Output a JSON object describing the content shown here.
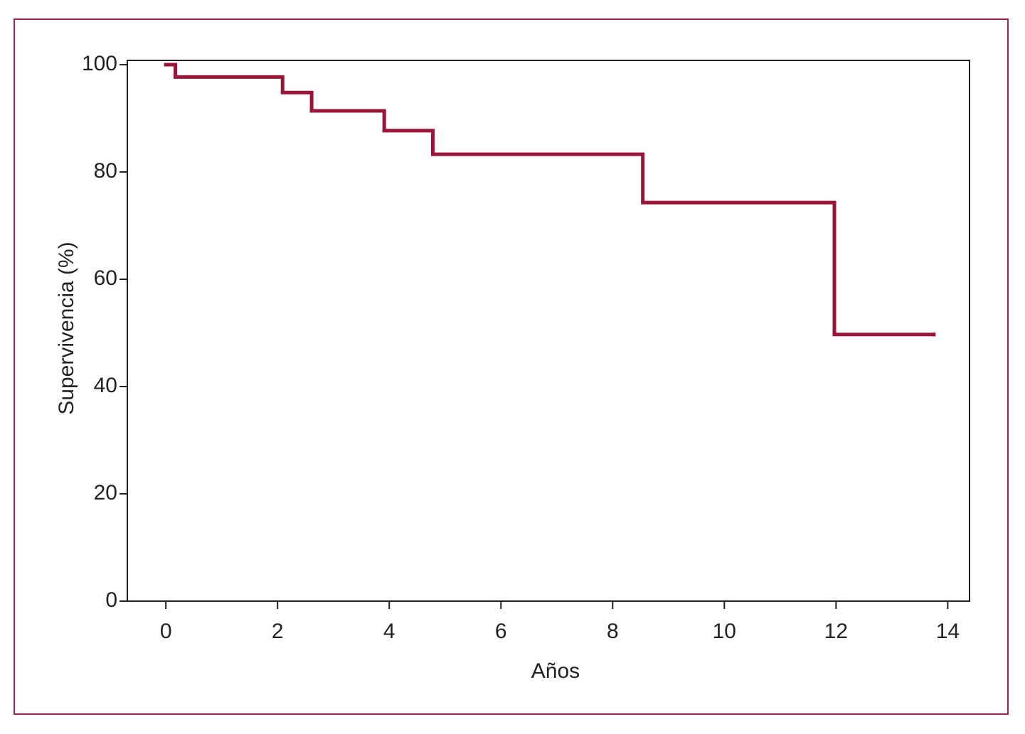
{
  "chart_data": {
    "type": "step",
    "x_label": "Años",
    "y_label": "Supervivencia (%)",
    "x": [
      0,
      0.17,
      2.09,
      2.61,
      3.91,
      4.78,
      8.54,
      11.97,
      13.75
    ],
    "series": [
      {
        "color": "#9b1538",
        "values": [
          100,
          97.7,
          94.8,
          91.4,
          87.7,
          83.3,
          74.3,
          49.7,
          49.7
        ]
      }
    ],
    "xlim": [
      -0.69,
      14.39
    ],
    "xticks": [
      0,
      2,
      4,
      6,
      8,
      10,
      12,
      14
    ],
    "ylim": [
      0,
      100.8
    ],
    "yticks": [
      0,
      20,
      40,
      60,
      80,
      100
    ],
    "grid": false
  }
}
